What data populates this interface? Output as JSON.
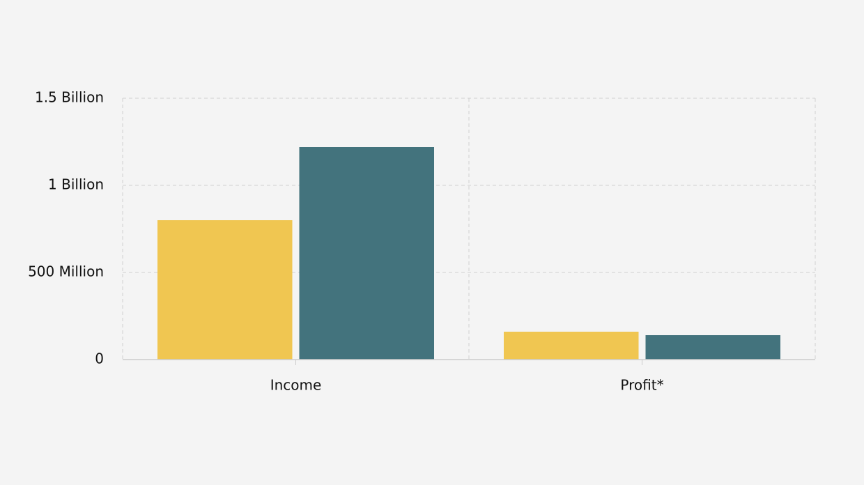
{
  "chart_data": {
    "type": "bar",
    "categories": [
      "Income",
      "Profit*"
    ],
    "series": [
      {
        "color": "#f0c651",
        "values": [
          800000000,
          160000000
        ]
      },
      {
        "color": "#43737d",
        "values": [
          1220000000,
          140000000
        ]
      }
    ],
    "ylim": [
      0,
      1500000000
    ],
    "yticks": [
      0,
      {
        "value": 500000000,
        "label": "500 Million"
      },
      {
        "value": 1000000000,
        "label": "1 Billion"
      },
      {
        "value": 1500000000,
        "label": "1.5 Billion"
      }
    ],
    "grid": true
  }
}
